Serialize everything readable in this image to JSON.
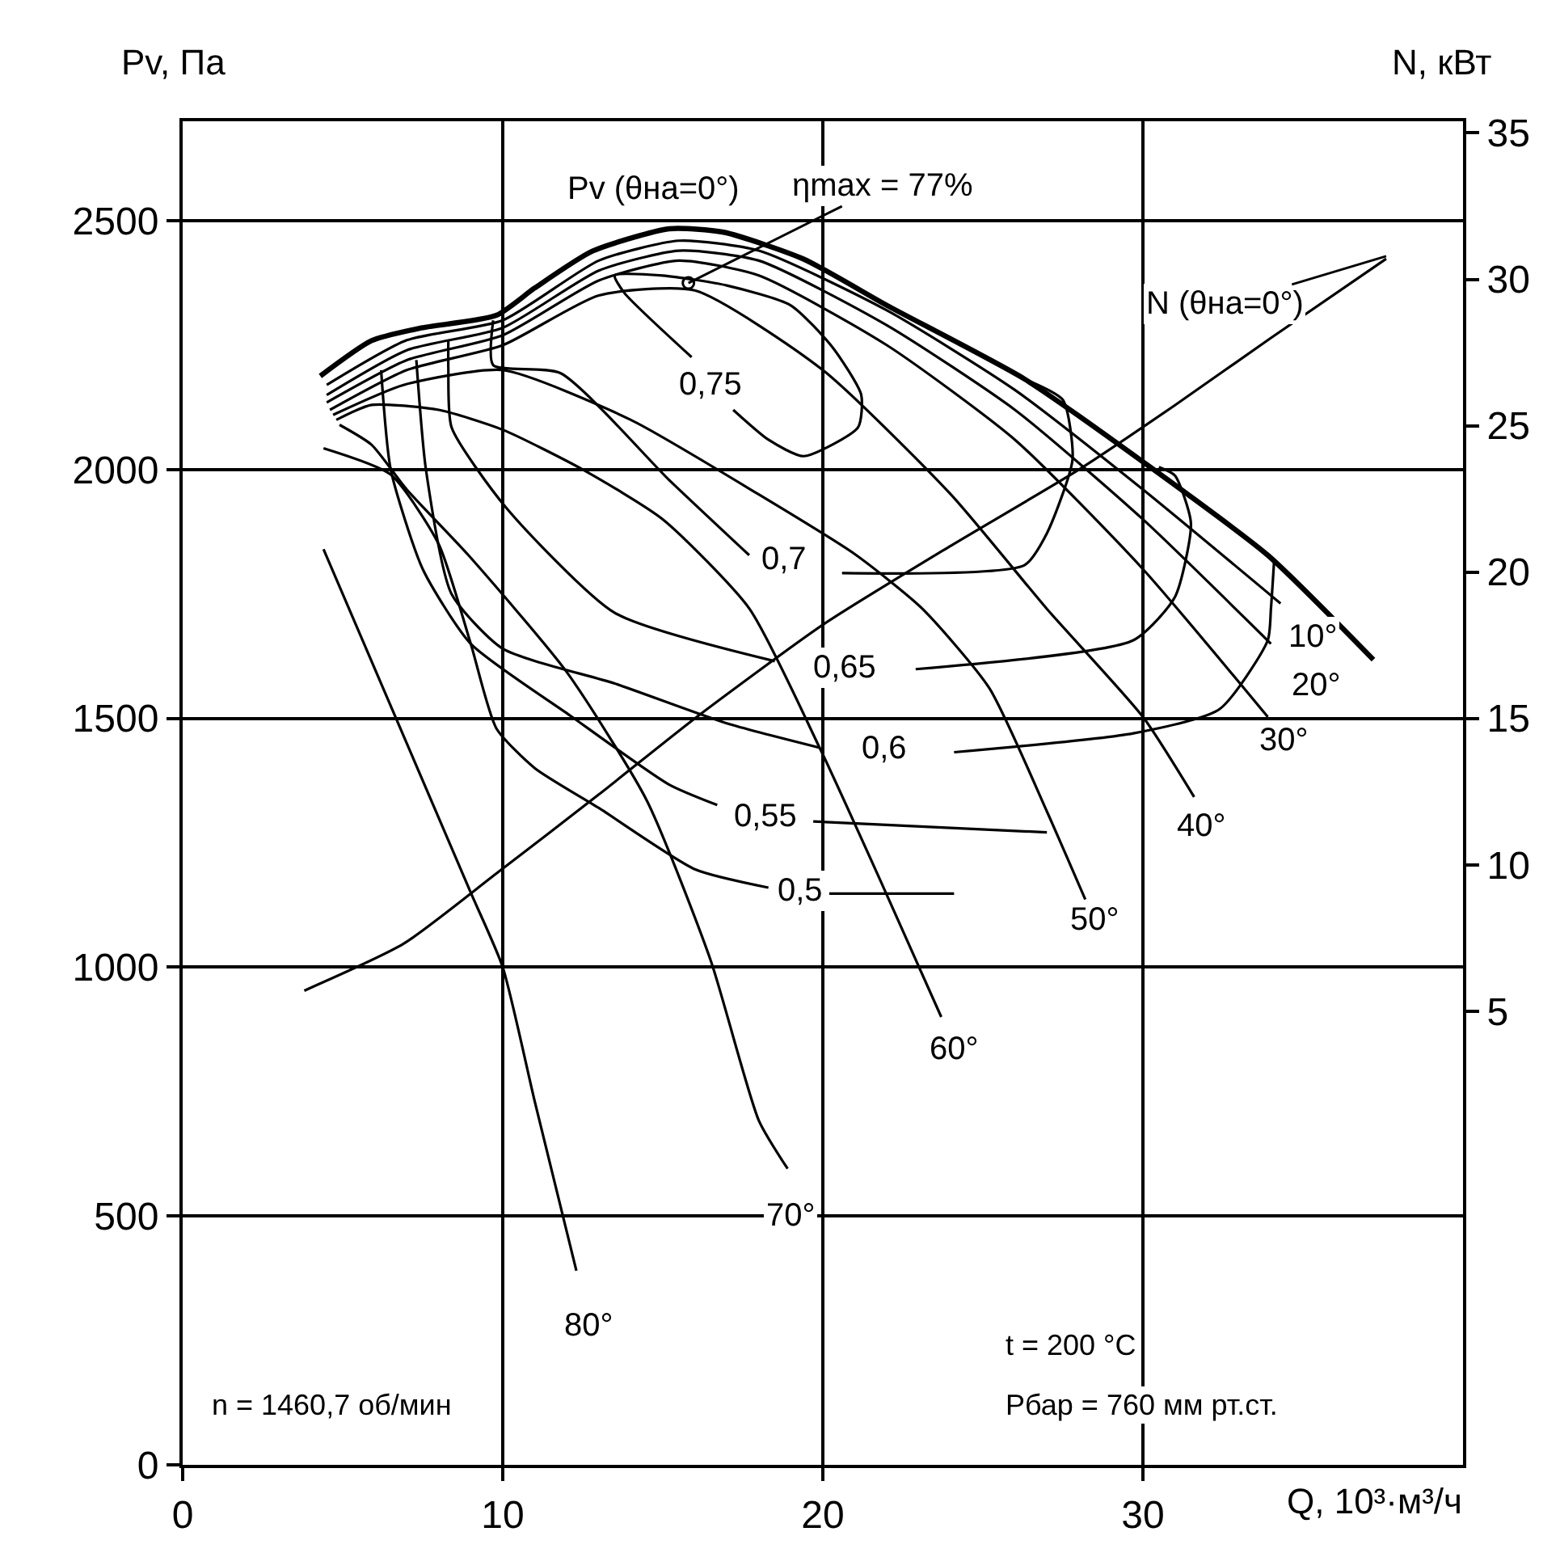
{
  "chart_data": {
    "type": "line",
    "xlabel": "Q, 10³·м³/ч",
    "ylabel": "Pv, Па",
    "y2label": "N, кВт",
    "xlim": [
      0,
      40
    ],
    "xticks": [
      0,
      10,
      20,
      30
    ],
    "ylim": [
      0,
      2700
    ],
    "yticks": [
      0,
      500,
      1000,
      1500,
      2000,
      2500
    ],
    "y2lim": [
      -10.5,
      35.4
    ],
    "y2ticks": [
      5,
      10,
      15,
      20,
      25,
      30,
      35
    ],
    "grid": true,
    "marker": "none",
    "line_style": "solid",
    "series": [
      {
        "color": "#000000",
        "x": [
          4.3,
          5.9,
          7.4,
          9.8,
          11,
          12.8,
          15.2,
          16.9,
          19.4,
          22,
          26.3,
          30.1,
          33.9,
          37.2
        ],
        "values": [
          2188,
          2259,
          2284,
          2310,
          2365,
          2439,
          2484,
          2477,
          2423,
          2330,
          2182,
          2011,
          1828,
          1618
        ]
      },
      {
        "color": "#000000",
        "x": [
          4.5,
          7,
          10,
          13,
          15.5,
          18,
          22,
          26,
          30,
          34.3
        ],
        "values": [
          2170,
          2260,
          2300,
          2420,
          2460,
          2440,
          2320,
          2160,
          1960,
          1731
        ]
      },
      {
        "color": "#000000",
        "x": [
          4.5,
          7,
          10,
          13,
          15.5,
          18,
          22,
          26,
          30,
          34
        ],
        "values": [
          2150,
          2240,
          2285,
          2400,
          2440,
          2420,
          2290,
          2120,
          1900,
          1650
        ]
      },
      {
        "color": "#000000",
        "x": [
          4.5,
          7,
          10,
          13,
          15.5,
          18,
          22,
          26,
          30,
          33.9
        ],
        "values": [
          2135,
          2220,
          2270,
          2380,
          2420,
          2390,
          2250,
          2060,
          1800,
          1503
        ]
      },
      {
        "color": "#000000",
        "x": [
          4.6,
          7,
          10,
          13,
          16,
          20,
          24,
          27,
          30,
          31.6
        ],
        "values": [
          2120,
          2200,
          2250,
          2350,
          2360,
          2200,
          1950,
          1720,
          1503,
          1342
        ]
      },
      {
        "color": "#000000",
        "x": [
          4.7,
          6.9,
          10,
          14,
          18,
          21,
          23.1,
          25.2,
          27,
          28.2
        ],
        "values": [
          2110,
          2170,
          2200,
          2100,
          1950,
          1830,
          1721,
          1561,
          1313,
          1136
        ]
      },
      {
        "color": "#000000",
        "x": [
          4.8,
          5.9,
          8,
          10,
          12.5,
          15,
          17.7,
          19.9,
          21.8,
          23.7
        ],
        "values": [
          2100,
          2130,
          2120,
          2080,
          2000,
          1900,
          1721,
          1441,
          1174,
          900
        ]
      },
      {
        "color": "#000000",
        "x": [
          4.9,
          5.9,
          7,
          8.9,
          12,
          14.5,
          16.5,
          18,
          18.9
        ],
        "values": [
          2090,
          2050,
          1960,
          1830,
          1593,
          1335,
          1013,
          692,
          595
        ]
      },
      {
        "color": "#000000",
        "x": [
          4.4,
          7,
          9,
          10,
          11,
          12.3
        ],
        "values": [
          1840,
          1450,
          1150,
          1000,
          730,
          390
        ]
      },
      {
        "color": "#000000",
        "x": [
          15.9,
          13.8,
          13.5,
          15,
          17,
          19,
          20.3,
          21.2,
          21.1,
          19.4,
          18.3,
          17.2
        ],
        "values": [
          2226,
          2355,
          2390,
          2390,
          2370,
          2330,
          2246,
          2150,
          2085,
          2027,
          2060,
          2120
        ]
      },
      {
        "color": "#000000",
        "x": [
          9.7,
          9.7,
          11.8,
          15.2,
          17.7,
          null,
          20.6,
          26.3,
          27,
          27.8,
          27.5,
          26.3
        ],
        "values": [
          2300,
          2210,
          2194,
          1979,
          1828,
          null,
          1792,
          1808,
          1872,
          2020,
          2140,
          2182
        ]
      },
      {
        "color": "#000000",
        "x": [
          8.3,
          8.3,
          8.4,
          10.1,
          13.5,
          18.5,
          null,
          22.9,
          29.7,
          31,
          31.5,
          31,
          30.5
        ],
        "values": [
          2260,
          2204,
          2085,
          1924,
          1712,
          1615,
          null,
          1599,
          1657,
          1744,
          1892,
          1988,
          2005
        ]
      },
      {
        "color": "#000000",
        "x": [
          7.3,
          7.6,
          8.4,
          10,
          13.5,
          17,
          19.9,
          null,
          24.1,
          29.7,
          32.4,
          33.9,
          34,
          34.1
        ],
        "values": [
          2220,
          2000,
          1750,
          1640,
          1570,
          1490,
          1441,
          null,
          1432,
          1470,
          1519,
          1657,
          1721,
          1818
        ]
      },
      {
        "color": "#000000",
        "x": [
          6.2,
          6.5,
          7.5,
          9,
          12.1,
          15.2,
          16.7,
          null,
          19.7,
          24,
          27
        ],
        "values": [
          2200,
          2000,
          1800,
          1650,
          1506,
          1367,
          1326,
          null,
          1293,
          1280,
          1271
        ]
      },
      {
        "color": "#000000",
        "x": [
          4.4,
          6.5,
          8,
          9,
          9.8,
          11,
          13,
          16,
          18.3,
          null,
          20.2,
          24.1
        ],
        "values": [
          2043,
          1990,
          1850,
          1650,
          1480,
          1400,
          1320,
          1197,
          1160,
          null,
          1148,
          1148
        ]
      },
      {
        "color": "#000000",
        "axis": "y2",
        "x": [
          3.8,
          6.9,
          9.8,
          13,
          16,
          20,
          24,
          28,
          31,
          34,
          37.6
        ],
        "values": [
          5.7,
          7.3,
          9.7,
          12.4,
          15,
          18.2,
          20.9,
          23.5,
          25.7,
          28,
          30.7
        ]
      },
      {
        "color": "#000000",
        "type": "scatter",
        "marker": "circle",
        "x": [
          15.8
        ],
        "values": [
          2375
        ]
      }
    ],
    "annotations": [
      {
        "text": "Pv (θна=0°)",
        "x": 15.2,
        "y": 2484
      },
      {
        "text": "ηmax = 77%",
        "x": 15.8,
        "y": 2375
      },
      {
        "text": "N (θна=0°)",
        "x": 37.6,
        "y": 2429
      },
      {
        "text": "10°",
        "x": 35.3,
        "y": 1663
      },
      {
        "text": "20°",
        "x": 35.4,
        "y": 1567
      },
      {
        "text": "30°",
        "x": 34.4,
        "y": 1454
      },
      {
        "text": "40°",
        "x": 31.8,
        "y": 1285
      },
      {
        "text": "50°",
        "x": 28.5,
        "y": 1094
      },
      {
        "text": "60°",
        "x": 24.1,
        "y": 836
      },
      {
        "text": "70°",
        "x": 19.0,
        "y": 500
      },
      {
        "text": "80°",
        "x": 12.7,
        "y": 280
      },
      {
        "text": "0,75",
        "x": 16.5,
        "y": 2172
      },
      {
        "text": "0,7",
        "x": 18.8,
        "y": 1818
      },
      {
        "text": "0,65",
        "x": 20.7,
        "y": 1603
      },
      {
        "text": "0,6",
        "x": 21.9,
        "y": 1438
      },
      {
        "text": "0,55",
        "x": 18.2,
        "y": 1303
      },
      {
        "text": "0,5",
        "x": 19.3,
        "y": 1155
      },
      "n = 1460,7 об/мин",
      "t = 200 °C",
      "Рбар = 760 мм рт.ст."
    ]
  }
}
